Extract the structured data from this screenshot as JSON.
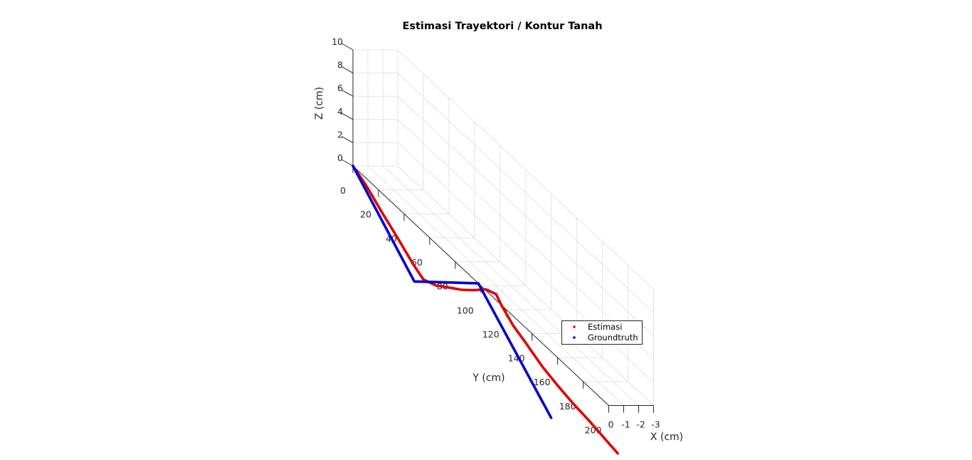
{
  "chart_data": {
    "type": "line",
    "title": "Estimasi Trayektori / Kontur Tanah",
    "xlabel": "X (cm)",
    "ylabel": "Y (cm)",
    "zlabel": "Z (cm)",
    "xlim": [
      -3,
      0
    ],
    "ylim": [
      0,
      200
    ],
    "zlim": [
      0,
      10
    ],
    "xticks": [
      "0",
      "-1",
      "-2",
      "-3"
    ],
    "yticks": [
      "0",
      "20",
      "40",
      "60",
      "80",
      "100",
      "120",
      "140",
      "160",
      "180",
      "200"
    ],
    "zticks": [
      "0",
      "2",
      "4",
      "6",
      "8",
      "10"
    ],
    "grid": true,
    "legend_position": "bottom-right",
    "series": [
      {
        "name": "Estimasi",
        "color": "#e00000",
        "points": [
          {
            "x": 0,
            "y": 0,
            "z": 0
          },
          {
            "x": 0,
            "y": 10,
            "z": -0.6
          },
          {
            "x": 0,
            "y": 22,
            "z": -1.6
          },
          {
            "x": 0,
            "y": 35,
            "z": -2.6
          },
          {
            "x": 0,
            "y": 47,
            "z": -3.6
          },
          {
            "x": 0,
            "y": 55,
            "z": -4.1
          },
          {
            "x": 0,
            "y": 65,
            "z": -3.6
          },
          {
            "x": 0,
            "y": 73,
            "z": -2.9
          },
          {
            "x": 0,
            "y": 85,
            "z": -1.9
          },
          {
            "x": 0,
            "y": 94,
            "z": -1.0
          },
          {
            "x": 0,
            "y": 104,
            "z": 0.1
          },
          {
            "x": 0,
            "y": 112,
            "z": 0.5
          },
          {
            "x": 0,
            "y": 116,
            "z": 0.0
          },
          {
            "x": 0,
            "y": 125,
            "z": -0.8
          },
          {
            "x": 0,
            "y": 135,
            "z": -1.3
          },
          {
            "x": 0,
            "y": 148,
            "z": -2.0
          },
          {
            "x": 0,
            "y": 160,
            "z": -2.4
          },
          {
            "x": 0,
            "y": 172,
            "z": -2.7
          },
          {
            "x": 0,
            "y": 185,
            "z": -2.9
          },
          {
            "x": 0,
            "y": 198,
            "z": -3.2
          },
          {
            "x": 0,
            "y": 207,
            "z": -3.4
          }
        ]
      },
      {
        "name": "Groundtruth",
        "color": "#0000d0",
        "points": [
          {
            "x": 0,
            "y": 0,
            "z": 0
          },
          {
            "x": 0,
            "y": 48,
            "z": -5.0
          },
          {
            "x": 0,
            "y": 98,
            "z": 0.0
          },
          {
            "x": 0,
            "y": 148,
            "z": -5.0
          },
          {
            "x": 0,
            "y": 155,
            "z": -5.7
          }
        ]
      }
    ]
  }
}
